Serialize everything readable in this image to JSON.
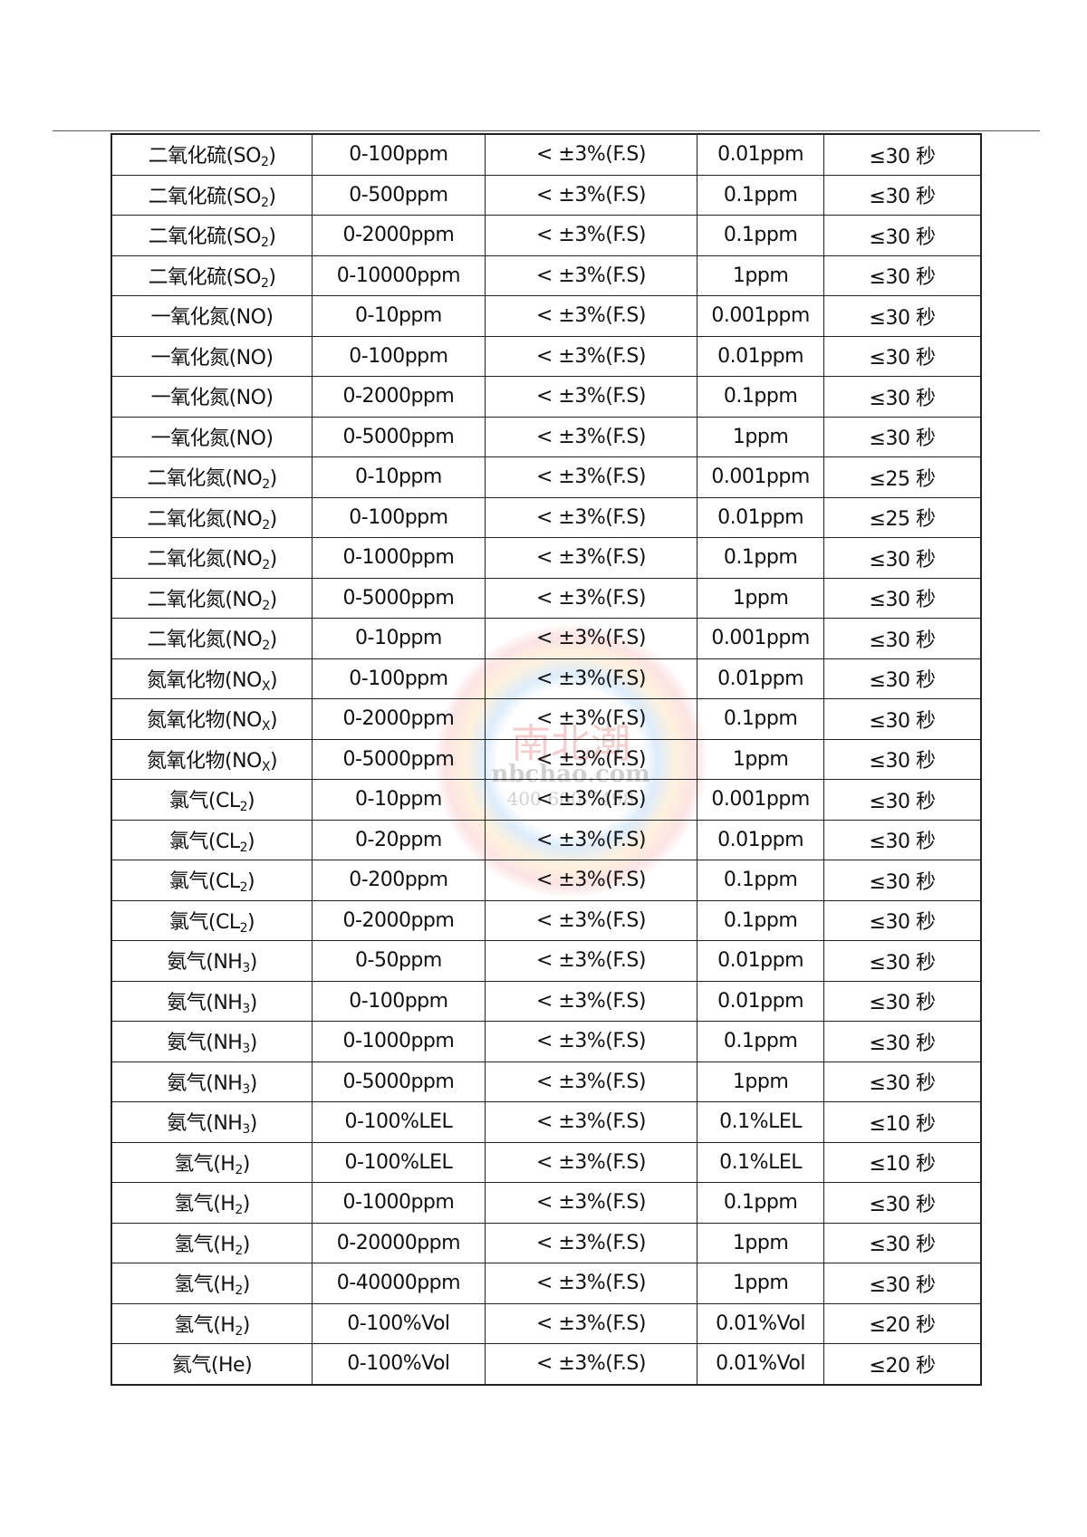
{
  "watermark": {
    "brand": "南北潮",
    "site": "nbchao.com",
    "phone": "400-600-7498"
  },
  "rows": [
    {
      "gas": "二氧化硫(SO",
      "sub": "2",
      "close": ")",
      "range": "0-100ppm",
      "accuracy": "< ±3%(F.S)",
      "resolution": "0.01ppm",
      "response": "≤30 秒"
    },
    {
      "gas": "二氧化硫(SO",
      "sub": "2",
      "close": ")",
      "range": "0-500ppm",
      "accuracy": "< ±3%(F.S)",
      "resolution": "0.1ppm",
      "response": "≤30 秒"
    },
    {
      "gas": "二氧化硫(SO",
      "sub": "2",
      "close": ")",
      "range": "0-2000ppm",
      "accuracy": "< ±3%(F.S)",
      "resolution": "0.1ppm",
      "response": "≤30 秒"
    },
    {
      "gas": "二氧化硫(SO",
      "sub": "2",
      "close": ")",
      "range": "0-10000ppm",
      "accuracy": "< ±3%(F.S)",
      "resolution": "1ppm",
      "response": "≤30 秒"
    },
    {
      "gas": "一氧化氮(NO)",
      "sub": "",
      "close": "",
      "range": "0-10ppm",
      "accuracy": "< ±3%(F.S)",
      "resolution": "0.001ppm",
      "response": "≤30 秒"
    },
    {
      "gas": "一氧化氮(NO)",
      "sub": "",
      "close": "",
      "range": "0-100ppm",
      "accuracy": "< ±3%(F.S)",
      "resolution": "0.01ppm",
      "response": "≤30 秒"
    },
    {
      "gas": "一氧化氮(NO)",
      "sub": "",
      "close": "",
      "range": "0-2000ppm",
      "accuracy": "< ±3%(F.S)",
      "resolution": "0.1ppm",
      "response": "≤30 秒"
    },
    {
      "gas": "一氧化氮(NO)",
      "sub": "",
      "close": "",
      "range": "0-5000ppm",
      "accuracy": "< ±3%(F.S)",
      "resolution": "1ppm",
      "response": "≤30 秒"
    },
    {
      "gas": "二氧化氮(NO",
      "sub": "2",
      "close": ")",
      "range": "0-10ppm",
      "accuracy": "< ±3%(F.S)",
      "resolution": "0.001ppm",
      "response": "≤25 秒"
    },
    {
      "gas": "二氧化氮(NO",
      "sub": "2",
      "close": ")",
      "range": "0-100ppm",
      "accuracy": "< ±3%(F.S)",
      "resolution": "0.01ppm",
      "response": "≤25 秒"
    },
    {
      "gas": "二氧化氮(NO",
      "sub": "2",
      "close": ")",
      "range": "0-1000ppm",
      "accuracy": "< ±3%(F.S)",
      "resolution": "0.1ppm",
      "response": "≤30 秒"
    },
    {
      "gas": "二氧化氮(NO",
      "sub": "2",
      "close": ")",
      "range": "0-5000ppm",
      "accuracy": "< ±3%(F.S)",
      "resolution": "1ppm",
      "response": "≤30 秒"
    },
    {
      "gas": "二氧化氮(NO",
      "sub": "2",
      "close": ")",
      "range": "0-10ppm",
      "accuracy": "< ±3%(F.S)",
      "resolution": "0.001ppm",
      "response": "≤30 秒"
    },
    {
      "gas": "氮氧化物(NO",
      "sub": "X",
      "close": ")",
      "range": "0-100ppm",
      "accuracy": "< ±3%(F.S)",
      "resolution": "0.01ppm",
      "response": "≤30 秒"
    },
    {
      "gas": "氮氧化物(NO",
      "sub": "X",
      "close": ")",
      "range": "0-2000ppm",
      "accuracy": "< ±3%(F.S)",
      "resolution": "0.1ppm",
      "response": "≤30 秒"
    },
    {
      "gas": "氮氧化物(NO",
      "sub": "X",
      "close": ")",
      "range": "0-5000ppm",
      "accuracy": "< ±3%(F.S)",
      "resolution": "1ppm",
      "response": "≤30 秒"
    },
    {
      "gas": "氯气(CL",
      "sub": "2",
      "close": ")",
      "range": "0-10ppm",
      "accuracy": "< ±3%(F.S)",
      "resolution": "0.001ppm",
      "response": "≤30 秒"
    },
    {
      "gas": "氯气(CL",
      "sub": "2",
      "close": ")",
      "range": "0-20ppm",
      "accuracy": "< ±3%(F.S)",
      "resolution": "0.01ppm",
      "response": "≤30 秒"
    },
    {
      "gas": "氯气(CL",
      "sub": "2",
      "close": ")",
      "range": "0-200ppm",
      "accuracy": "< ±3%(F.S)",
      "resolution": "0.1ppm",
      "response": "≤30 秒"
    },
    {
      "gas": "氯气(CL",
      "sub": "2",
      "close": ")",
      "range": "0-2000ppm",
      "accuracy": "< ±3%(F.S)",
      "resolution": "0.1ppm",
      "response": "≤30 秒"
    },
    {
      "gas": "氨气(NH",
      "sub": "3",
      "close": ")",
      "range": "0-50ppm",
      "accuracy": "< ±3%(F.S)",
      "resolution": "0.01ppm",
      "response": "≤30 秒"
    },
    {
      "gas": "氨气(NH",
      "sub": "3",
      "close": ")",
      "range": "0-100ppm",
      "accuracy": "< ±3%(F.S)",
      "resolution": "0.01ppm",
      "response": "≤30 秒"
    },
    {
      "gas": "氨气(NH",
      "sub": "3",
      "close": ")",
      "range": "0-1000ppm",
      "accuracy": "< ±3%(F.S)",
      "resolution": "0.1ppm",
      "response": "≤30 秒"
    },
    {
      "gas": "氨气(NH",
      "sub": "3",
      "close": ")",
      "range": "0-5000ppm",
      "accuracy": "< ±3%(F.S)",
      "resolution": "1ppm",
      "response": "≤30 秒"
    },
    {
      "gas": "氨气(NH",
      "sub": "3",
      "close": ")",
      "range": "0-100%LEL",
      "accuracy": "< ±3%(F.S)",
      "resolution": "0.1%LEL",
      "response": "≤10 秒"
    },
    {
      "gas": "氢气(H",
      "sub": "2",
      "close": ")",
      "range": "0-100%LEL",
      "accuracy": "< ±3%(F.S)",
      "resolution": "0.1%LEL",
      "response": "≤10 秒"
    },
    {
      "gas": "氢气(H",
      "sub": "2",
      "close": ")",
      "range": "0-1000ppm",
      "accuracy": "< ±3%(F.S)",
      "resolution": "0.1ppm",
      "response": "≤30 秒"
    },
    {
      "gas": "氢气(H",
      "sub": "2",
      "close": ")",
      "range": "0-20000ppm",
      "accuracy": "< ±3%(F.S)",
      "resolution": "1ppm",
      "response": "≤30 秒"
    },
    {
      "gas": "氢气(H",
      "sub": "2",
      "close": ")",
      "range": "0-40000ppm",
      "accuracy": "< ±3%(F.S)",
      "resolution": "1ppm",
      "response": "≤30 秒"
    },
    {
      "gas": "氢气(H",
      "sub": "2",
      "close": ")",
      "range": "0-100%Vol",
      "accuracy": "< ±3%(F.S)",
      "resolution": "0.01%Vol",
      "response": "≤20 秒"
    },
    {
      "gas": "氦气(He)",
      "sub": "",
      "close": "",
      "range": "0-100%Vol",
      "accuracy": "< ±3%(F.S)",
      "resolution": "0.01%Vol",
      "response": "≤20 秒"
    }
  ]
}
